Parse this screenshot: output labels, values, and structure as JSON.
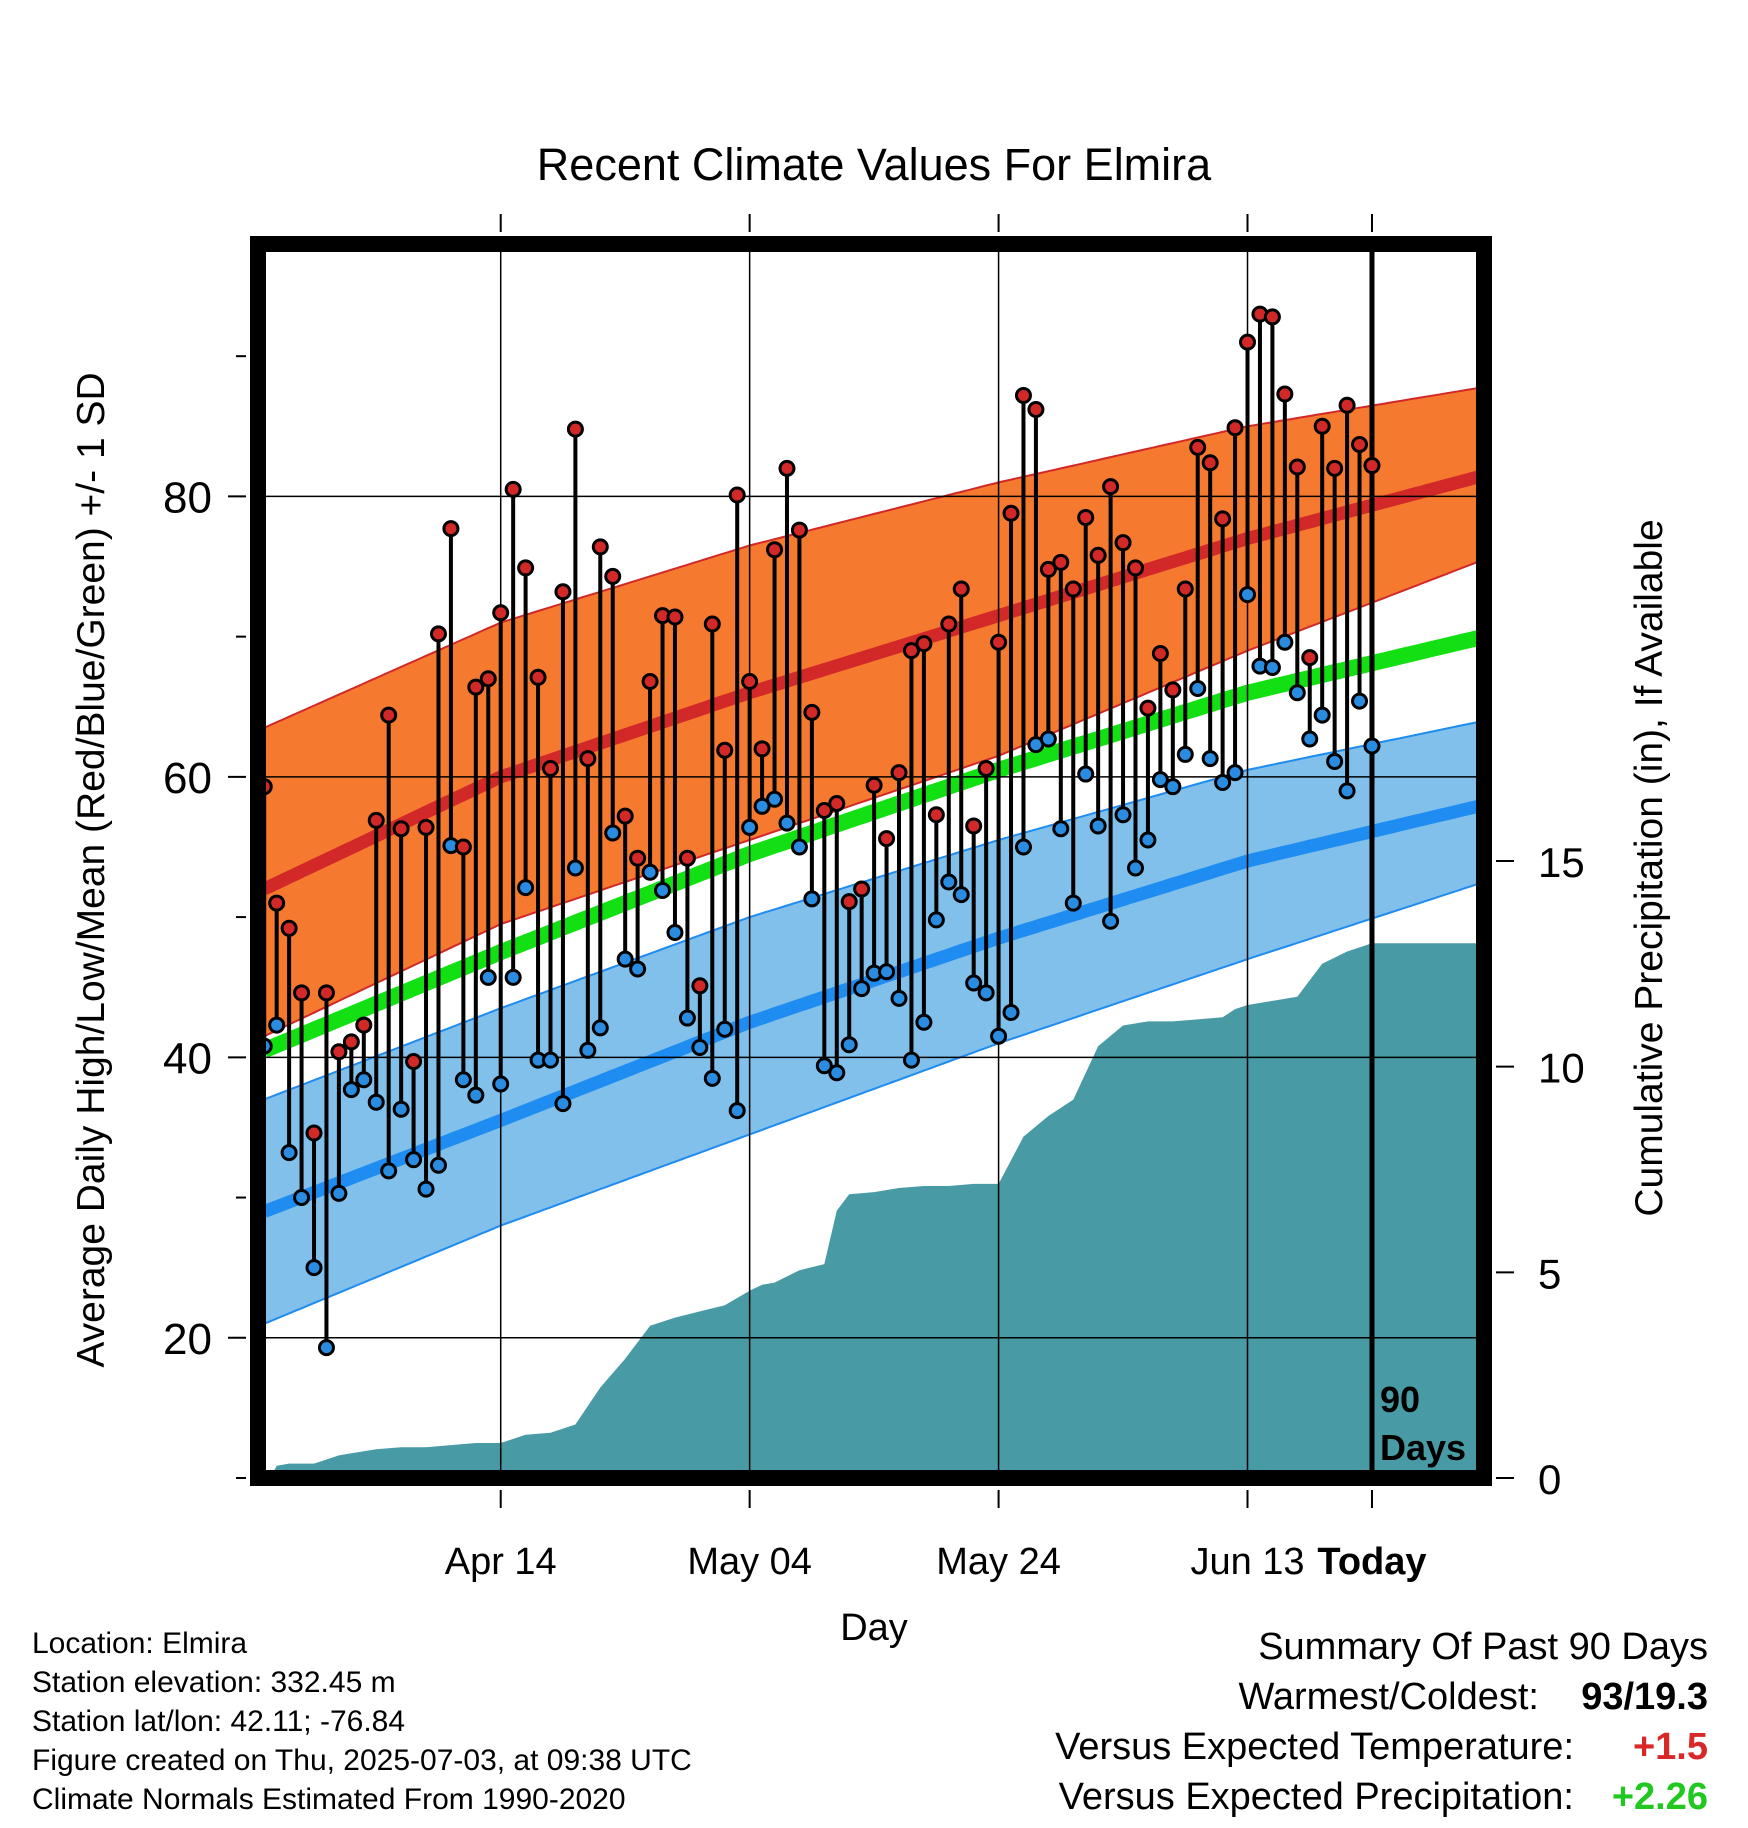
{
  "chart_data": {
    "type": "line",
    "title": "Recent Climate Values For Elmira",
    "xlabel": "Day",
    "ylabel": "Average Daily High/Low/Mean (Red/Blue/Green) +/- 1 SD",
    "y2label": "Cumulative Precipitation (in), If Available",
    "ylim": [
      10,
      98
    ],
    "y2lim": [
      0,
      30
    ],
    "xlim": [
      -89.5,
      9
    ],
    "yticks": [
      "20",
      "40",
      "60",
      "80"
    ],
    "y2ticks": [
      "0",
      "5",
      "10",
      "15"
    ],
    "xtick_labels": [
      "Apr 14",
      "May 04",
      "May 24",
      "Jun 13",
      "Today"
    ],
    "window_label": [
      "90",
      "Days"
    ],
    "colors": {
      "high_band": "#f57a30",
      "high_line": "#d22828",
      "low_band": "#80c0ea",
      "low_line": "#1e8cf0",
      "mean_line": "#12e012",
      "precip": "#489aa5",
      "high_dot": "#d22828",
      "low_dot": "#2a8ce0",
      "temp_anomaly": "#d82828",
      "precip_anomaly": "#20c820"
    },
    "normal_high": {
      "x": [
        -89,
        -70,
        -50,
        -30,
        -10,
        9
      ],
      "values": [
        52,
        60,
        66,
        71.5,
        77,
        81.5
      ]
    },
    "normal_high_upper": {
      "x": [
        -89,
        -70,
        -50,
        -30,
        -10,
        9
      ],
      "values": [
        63.5,
        71,
        76.5,
        81,
        85,
        87.8
      ]
    },
    "normal_high_lower": {
      "x": [
        -89,
        -70,
        -50,
        -30,
        -10,
        9
      ],
      "values": [
        41.5,
        49.5,
        55.5,
        61.5,
        69,
        75.5
      ]
    },
    "normal_mean": {
      "x": [
        -89,
        -70,
        -50,
        -30,
        -10,
        9
      ],
      "values": [
        40.5,
        47.5,
        54.5,
        60.5,
        66,
        70
      ]
    },
    "normal_low": {
      "x": [
        -89,
        -70,
        -50,
        -30,
        -10,
        9
      ],
      "values": [
        29,
        35.5,
        42.5,
        48.5,
        54,
        58
      ]
    },
    "normal_low_upper": {
      "x": [
        -89,
        -70,
        -50,
        -30,
        -10,
        9
      ],
      "values": [
        37,
        43.5,
        50,
        55.5,
        60.5,
        64
      ]
    },
    "normal_low_lower": {
      "x": [
        -89,
        -70,
        -50,
        -30,
        -10,
        9
      ],
      "values": [
        21,
        28,
        34.5,
        41,
        47,
        52.5
      ]
    },
    "daily_high": [
      59.3,
      51,
      49.2,
      44.6,
      34.6,
      44.6,
      40.4,
      41.1,
      42.3,
      56.9,
      64.4,
      56.3,
      39.7,
      56.4,
      70.2,
      77.7,
      55,
      66.4,
      67,
      71.7,
      80.5,
      74.9,
      67.1,
      60.6,
      73.2,
      84.8,
      61.3,
      76.4,
      74.3,
      57.2,
      54.2,
      66.8,
      71.5,
      71.4,
      54.2,
      45.1,
      70.9,
      61.9,
      80.1,
      66.8,
      62,
      76.2,
      82,
      77.6,
      64.6,
      57.6,
      58.1,
      51.1,
      52,
      59.4,
      55.6,
      60.3,
      69,
      69.5,
      57.3,
      70.9,
      73.4,
      56.5,
      60.6,
      69.6,
      78.8,
      87.2,
      86.2,
      74.8,
      75.3,
      73.4,
      78.5,
      75.8,
      80.7,
      76.7,
      74.9,
      64.9,
      68.8,
      66.2,
      73.4,
      83.5,
      82.4,
      78.4,
      84.9,
      91,
      93,
      92.8,
      87.3,
      82.1,
      68.5,
      85,
      82,
      86.5,
      83.7,
      82.2
    ],
    "daily_low": [
      40.8,
      42.3,
      33.2,
      30,
      25,
      19.3,
      30.3,
      37.7,
      38.4,
      36.8,
      31.9,
      36.3,
      32.7,
      30.6,
      32.3,
      55.1,
      38.4,
      37.3,
      45.7,
      38.1,
      45.7,
      52.1,
      39.8,
      39.8,
      36.7,
      53.5,
      40.5,
      42.1,
      56,
      47,
      46.3,
      53.2,
      51.9,
      48.9,
      42.8,
      40.7,
      38.5,
      42,
      36.2,
      56.4,
      57.9,
      58.4,
      56.7,
      55,
      51.3,
      39.4,
      38.9,
      40.9,
      44.9,
      46,
      46.1,
      44.2,
      39.8,
      42.5,
      49.8,
      52.5,
      51.6,
      45.3,
      44.6,
      41.5,
      43.2,
      55,
      62.3,
      62.7,
      56.3,
      51,
      60.2,
      56.5,
      49.7,
      57.3,
      53.5,
      55.5,
      59.8,
      59.3,
      61.6,
      66.3,
      61.3,
      59.6,
      60.3,
      73,
      67.9,
      67.8,
      69.6,
      66,
      62.7,
      64.4,
      61.1,
      59,
      65.4,
      62.2
    ],
    "cumulative_precip": {
      "x": [
        -89.5,
        -88.5,
        -88,
        -87,
        -85,
        -83,
        -82,
        -80,
        -78,
        -76,
        -74,
        -72,
        -70,
        -68,
        -66,
        -64,
        -62,
        -60,
        -58,
        -56,
        -54,
        -52,
        -50,
        -49,
        -48,
        -46,
        -44,
        -43,
        -42,
        -40,
        -38,
        -36,
        -34,
        -32,
        -30,
        -28,
        -26,
        -24,
        -22,
        -20,
        -18,
        -16,
        -14,
        -12,
        -11,
        -10,
        -8,
        -6,
        -4,
        -2,
        0,
        2,
        4,
        6,
        8,
        9
      ],
      "values": [
        0,
        0,
        0.3,
        0.35,
        0.35,
        0.55,
        0.6,
        0.7,
        0.75,
        0.75,
        0.8,
        0.85,
        0.85,
        1.05,
        1.1,
        1.3,
        2.2,
        2.9,
        3.7,
        3.9,
        4.05,
        4.2,
        4.55,
        4.7,
        4.75,
        5.05,
        5.2,
        6.5,
        6.9,
        6.95,
        7.05,
        7.1,
        7.1,
        7.15,
        7.15,
        8.3,
        8.8,
        9.2,
        10.5,
        11,
        11.1,
        11.1,
        11.15,
        11.2,
        11.4,
        11.5,
        11.6,
        11.7,
        12.5,
        12.8,
        13,
        13,
        13,
        13,
        13,
        13
      ]
    }
  },
  "info": {
    "location": "Location: Elmira",
    "elevation": "Station elevation: 332.45 m",
    "latlon": "Station lat/lon: 42.11; -76.84",
    "created": "Figure created on Thu, 2025-07-03, at 09:38 UTC",
    "normals": "Climate Normals Estimated From 1990-2020"
  },
  "summary": {
    "title": "Summary Of Past 90 Days",
    "warmest_coldest_label": "Warmest/Coldest:",
    "warmest_coldest_value": "93/19.3",
    "temp_label": "Versus Expected Temperature:",
    "temp_value": "+1.5",
    "precip_label": "Versus Expected Precipitation:",
    "precip_value": "+2.26"
  }
}
